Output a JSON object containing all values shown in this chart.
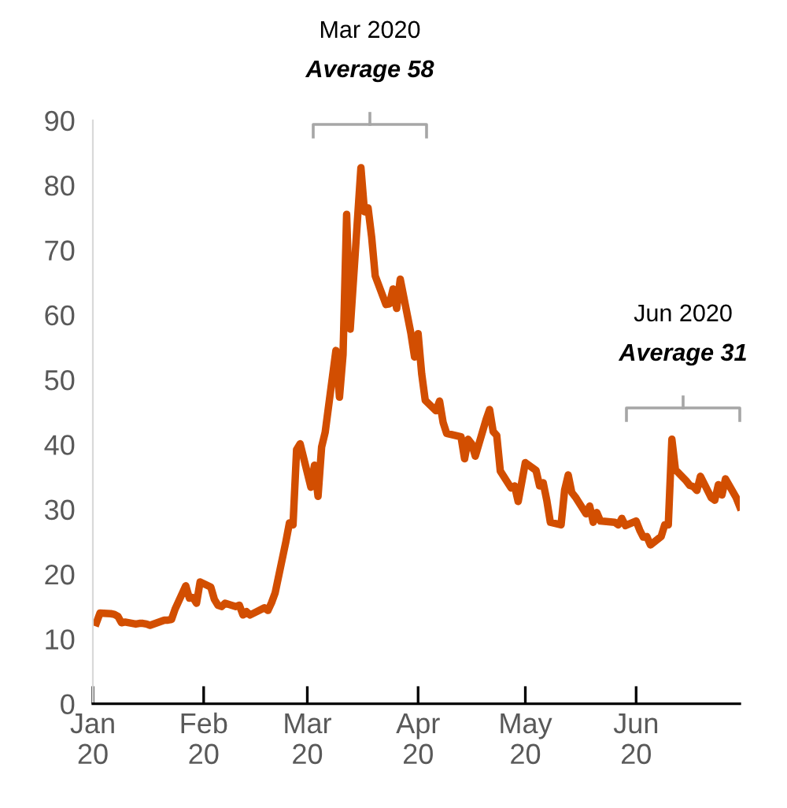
{
  "chart_data": {
    "type": "line",
    "x": [
      "2020-01-02",
      "2020-01-03",
      "2020-01-06",
      "2020-01-07",
      "2020-01-08",
      "2020-01-09",
      "2020-01-10",
      "2020-01-13",
      "2020-01-14",
      "2020-01-15",
      "2020-01-16",
      "2020-01-17",
      "2020-01-21",
      "2020-01-22",
      "2020-01-23",
      "2020-01-24",
      "2020-01-27",
      "2020-01-28",
      "2020-01-29",
      "2020-01-30",
      "2020-01-31",
      "2020-02-03",
      "2020-02-04",
      "2020-02-05",
      "2020-02-06",
      "2020-02-07",
      "2020-02-10",
      "2020-02-11",
      "2020-02-12",
      "2020-02-13",
      "2020-02-14",
      "2020-02-18",
      "2020-02-19",
      "2020-02-20",
      "2020-02-21",
      "2020-02-24",
      "2020-02-25",
      "2020-02-26",
      "2020-02-27",
      "2020-02-28",
      "2020-03-02",
      "2020-03-03",
      "2020-03-04",
      "2020-03-05",
      "2020-03-06",
      "2020-03-09",
      "2020-03-10",
      "2020-03-11",
      "2020-03-12",
      "2020-03-13",
      "2020-03-16",
      "2020-03-17",
      "2020-03-18",
      "2020-03-19",
      "2020-03-20",
      "2020-03-23",
      "2020-03-24",
      "2020-03-25",
      "2020-03-26",
      "2020-03-27",
      "2020-03-30",
      "2020-03-31",
      "2020-04-01",
      "2020-04-02",
      "2020-04-03",
      "2020-04-06",
      "2020-04-07",
      "2020-04-08",
      "2020-04-09",
      "2020-04-13",
      "2020-04-14",
      "2020-04-15",
      "2020-04-16",
      "2020-04-17",
      "2020-04-20",
      "2020-04-21",
      "2020-04-22",
      "2020-04-23",
      "2020-04-24",
      "2020-04-27",
      "2020-04-28",
      "2020-04-29",
      "2020-04-30",
      "2020-05-01",
      "2020-05-04",
      "2020-05-05",
      "2020-05-06",
      "2020-05-07",
      "2020-05-08",
      "2020-05-11",
      "2020-05-12",
      "2020-05-13",
      "2020-05-14",
      "2020-05-15",
      "2020-05-18",
      "2020-05-19",
      "2020-05-20",
      "2020-05-21",
      "2020-05-22",
      "2020-05-26",
      "2020-05-27",
      "2020-05-28",
      "2020-05-29",
      "2020-06-01",
      "2020-06-02",
      "2020-06-03",
      "2020-06-04",
      "2020-06-05",
      "2020-06-08",
      "2020-06-09",
      "2020-06-10",
      "2020-06-11",
      "2020-06-12",
      "2020-06-15",
      "2020-06-16",
      "2020-06-17",
      "2020-06-18",
      "2020-06-19",
      "2020-06-22",
      "2020-06-23",
      "2020-06-24",
      "2020-06-25",
      "2020-06-26",
      "2020-06-29",
      "2020-06-30"
    ],
    "series": [
      {
        "color": "#d24e01",
        "values": [
          12.5,
          14.0,
          13.9,
          13.8,
          13.5,
          12.5,
          12.6,
          12.3,
          12.4,
          12.4,
          12.3,
          12.1,
          12.9,
          12.9,
          13.0,
          14.6,
          18.2,
          16.3,
          16.4,
          15.5,
          18.8,
          18.0,
          16.1,
          15.2,
          15.0,
          15.5,
          15.0,
          15.2,
          13.7,
          14.2,
          13.7,
          14.8,
          14.4,
          15.6,
          17.1,
          25.0,
          27.9,
          27.6,
          39.2,
          40.1,
          33.4,
          36.8,
          32.0,
          39.6,
          41.9,
          54.5,
          47.3,
          53.9,
          75.5,
          57.8,
          82.7,
          75.9,
          76.5,
          72.0,
          66.0,
          61.6,
          61.7,
          64.0,
          61.0,
          65.5,
          57.1,
          53.5,
          57.1,
          50.9,
          46.8,
          45.2,
          46.7,
          43.4,
          41.7,
          41.2,
          37.8,
          40.8,
          40.1,
          38.2,
          43.8,
          45.4,
          42.0,
          41.4,
          35.9,
          33.3,
          33.6,
          31.2,
          34.2,
          37.2,
          36.0,
          33.6,
          34.1,
          31.4,
          28.0,
          27.6,
          33.0,
          35.3,
          32.6,
          31.9,
          29.3,
          30.5,
          28.0,
          29.5,
          28.2,
          28.0,
          27.6,
          28.6,
          27.5,
          28.2,
          26.8,
          25.7,
          25.8,
          24.5,
          25.8,
          27.6,
          27.6,
          40.8,
          36.1,
          34.4,
          33.7,
          33.5,
          32.9,
          35.1,
          31.8,
          31.4,
          33.8,
          32.2,
          34.7,
          31.8,
          30.4
        ]
      }
    ],
    "xlim": [
      "2020-01-01",
      "2020-06-30"
    ],
    "xticks": [
      {
        "value": "2020-01-01",
        "label": "Jan\n20"
      },
      {
        "value": "2020-02-01",
        "label": "Feb\n20"
      },
      {
        "value": "2020-03-01",
        "label": "Mar\n20"
      },
      {
        "value": "2020-04-01",
        "label": "Apr\n20"
      },
      {
        "value": "2020-05-01",
        "label": "May\n20"
      },
      {
        "value": "2020-06-01",
        "label": "Jun\n20"
      }
    ],
    "ylim": [
      0,
      90
    ],
    "yticks": [
      0,
      10,
      20,
      30,
      40,
      50,
      60,
      70,
      80,
      90
    ],
    "annotations": [
      "Mar 2020",
      "Average 58",
      "Jun 2020",
      "Average 31"
    ],
    "grid": false,
    "legend": false,
    "marker": "none",
    "line_style": "solid"
  }
}
